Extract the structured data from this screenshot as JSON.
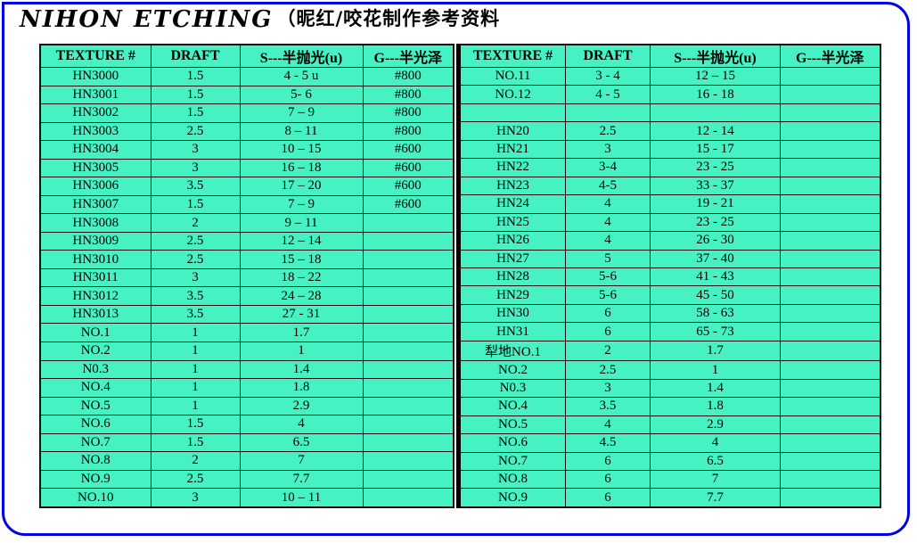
{
  "title": {
    "script": "NIHON ETCHING",
    "cjk": "（昵红/咬花制作参考资料"
  },
  "colors": {
    "cell_bg": "#46f2c4",
    "frame_border": "#0000e6",
    "grid_line": "#111111",
    "text": "#000000"
  },
  "left_table": {
    "headers": [
      "TEXTURE #",
      "DRAFT",
      "S---半抛光(u)",
      "G---半光泽"
    ],
    "rows": [
      [
        "HN3000",
        "1.5",
        "4 - 5 u",
        "#800"
      ],
      [
        "HN3001",
        "1.5",
        "5- 6",
        "#800"
      ],
      [
        "HN3002",
        "1.5",
        "7 – 9",
        "#800"
      ],
      [
        "HN3003",
        "2.5",
        "8 – 11",
        "#800"
      ],
      [
        "HN3004",
        "3",
        "10 – 15",
        "#600"
      ],
      [
        "HN3005",
        "3",
        "16 – 18",
        "#600"
      ],
      [
        "HN3006",
        "3.5",
        "17 – 20",
        "#600"
      ],
      [
        "HN3007",
        "1.5",
        "7 – 9",
        "#600"
      ],
      [
        "HN3008",
        "2",
        "9 – 11",
        ""
      ],
      [
        "HN3009",
        "2.5",
        "12 – 14",
        ""
      ],
      [
        "HN3010",
        "2.5",
        "15 – 18",
        ""
      ],
      [
        "HN3011",
        "3",
        "18 – 22",
        ""
      ],
      [
        "HN3012",
        "3.5",
        "24 – 28",
        ""
      ],
      [
        "HN3013",
        "3.5",
        "27 - 31",
        ""
      ],
      [
        "NO.1",
        "1",
        "1.7",
        ""
      ],
      [
        "NO.2",
        "1",
        "1",
        ""
      ],
      [
        "N0.3",
        "1",
        "1.4",
        ""
      ],
      [
        "NO.4",
        "1",
        "1.8",
        ""
      ],
      [
        "NO.5",
        "1",
        "2.9",
        ""
      ],
      [
        "NO.6",
        "1.5",
        "4",
        ""
      ],
      [
        "NO.7",
        "1.5",
        "6.5",
        ""
      ],
      [
        "NO.8",
        "2",
        "7",
        ""
      ],
      [
        "NO.9",
        "2.5",
        "7.7",
        ""
      ],
      [
        "NO.10",
        "3",
        "10 – 11",
        ""
      ]
    ]
  },
  "right_table": {
    "headers": [
      "TEXTURE #",
      "DRAFT",
      "S---半抛光(u)",
      "G---半光泽"
    ],
    "rows": [
      [
        "NO.11",
        "3 - 4",
        "12 – 15",
        ""
      ],
      [
        "NO.12",
        "4 - 5",
        "16 - 18",
        ""
      ],
      [
        "",
        "",
        "",
        ""
      ],
      [
        "HN20",
        "2.5",
        "12 - 14",
        ""
      ],
      [
        "HN21",
        "3",
        "15 - 17",
        ""
      ],
      [
        "HN22",
        "3-4",
        "23 - 25",
        ""
      ],
      [
        "HN23",
        "4-5",
        "33 - 37",
        ""
      ],
      [
        "HN24",
        "4",
        "19 - 21",
        ""
      ],
      [
        "HN25",
        "4",
        "23 - 25",
        ""
      ],
      [
        "HN26",
        "4",
        "26 - 30",
        ""
      ],
      [
        "HN27",
        "5",
        "37 - 40",
        ""
      ],
      [
        "HN28",
        "5-6",
        "41 - 43",
        ""
      ],
      [
        "HN29",
        "5-6",
        "45 - 50",
        ""
      ],
      [
        "HN30",
        "6",
        "58 - 63",
        ""
      ],
      [
        "HN31",
        "6",
        "65 - 73",
        ""
      ],
      [
        "犁地NO.1",
        "2",
        "1.7",
        ""
      ],
      [
        "NO.2",
        "2.5",
        "1",
        ""
      ],
      [
        "N0.3",
        "3",
        "1.4",
        ""
      ],
      [
        "NO.4",
        "3.5",
        "1.8",
        ""
      ],
      [
        "NO.5",
        "4",
        "2.9",
        ""
      ],
      [
        "NO.6",
        "4.5",
        "4",
        ""
      ],
      [
        "NO.7",
        "6",
        "6.5",
        ""
      ],
      [
        "NO.8",
        "6",
        "7",
        ""
      ],
      [
        "NO.9",
        "6",
        "7.7",
        ""
      ]
    ]
  }
}
